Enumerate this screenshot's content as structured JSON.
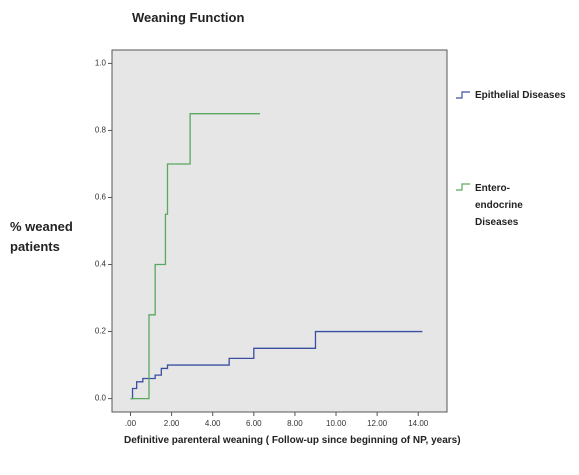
{
  "chart_data": {
    "type": "line",
    "step": true,
    "title": "Weaning Function",
    "xlabel": "Definitive parenteral weaning ( Follow-up since beginning of NP, years)",
    "ylabel": "% weaned patients",
    "xlim": [
      -0.9,
      15.4
    ],
    "xticks": [
      {
        "value": 0,
        "label": ".00"
      },
      {
        "value": 2,
        "label": "2.00"
      },
      {
        "value": 4,
        "label": "4.00"
      },
      {
        "value": 6,
        "label": "6.00"
      },
      {
        "value": 8,
        "label": "8.00"
      },
      {
        "value": 10,
        "label": "10.00"
      },
      {
        "value": 12,
        "label": "12.00"
      },
      {
        "value": 14,
        "label": "14.00"
      }
    ],
    "ylim": [
      -0.04,
      1.04
    ],
    "yticks": [
      {
        "value": 0,
        "label": "0.0"
      },
      {
        "value": 0.2,
        "label": "0.2"
      },
      {
        "value": 0.4,
        "label": "0.4"
      },
      {
        "value": 0.6,
        "label": "0.6"
      },
      {
        "value": 0.8,
        "label": "0.8"
      },
      {
        "value": 1,
        "label": "1.0"
      }
    ],
    "series": [
      {
        "name": "Epithelial Diseases",
        "color": "#3a4fa0",
        "x": [
          0,
          0.1,
          0.3,
          0.6,
          1.2,
          1.5,
          1.8,
          4.8,
          6.0,
          9.0,
          14.2
        ],
        "values": [
          0,
          0.03,
          0.05,
          0.06,
          0.07,
          0.09,
          0.1,
          0.12,
          0.15,
          0.2,
          0.2
        ]
      },
      {
        "name": "Entero-endocrine Diseases",
        "color": "#5aa860",
        "x": [
          0,
          0.9,
          1.2,
          1.7,
          1.8,
          2.9,
          6.3
        ],
        "values": [
          0,
          0.25,
          0.4,
          0.55,
          0.7,
          0.85,
          0.85
        ]
      }
    ]
  }
}
